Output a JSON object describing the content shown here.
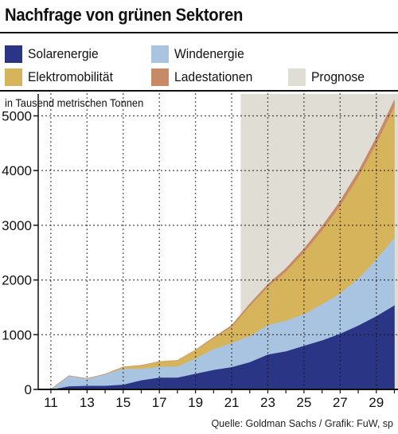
{
  "title": "Nachfrage von grünen Sektoren",
  "legend": [
    {
      "label": "Solarenergie",
      "color": "#2b3585"
    },
    {
      "label": "Windenergie",
      "color": "#a8c4e0"
    },
    {
      "label": "Elektromobilität",
      "color": "#d6b45c"
    },
    {
      "label": "Ladestationen",
      "color": "#c88a66"
    },
    {
      "label": "Prognose",
      "color": "#e0ddd5"
    }
  ],
  "unit_label": "in Tausend metrischen Tonnen",
  "source": "Quelle: Goldman Sachs / Grafik: FuW, sp",
  "chart_data": {
    "type": "area",
    "stacked": true,
    "title": "Nachfrage von grünen Sektoren",
    "ylabel": "in Tausend metrischen Tonnen",
    "x": [
      2011,
      2012,
      2013,
      2014,
      2015,
      2016,
      2017,
      2018,
      2019,
      2020,
      2021,
      2022,
      2023,
      2024,
      2025,
      2026,
      2027,
      2028,
      2029,
      2030
    ],
    "x_tick_values": [
      2011,
      2013,
      2015,
      2017,
      2019,
      2021,
      2023,
      2025,
      2027,
      2029
    ],
    "x_tick_labels": [
      "11",
      "13",
      "15",
      "17",
      "19",
      "21",
      "23",
      "25",
      "27",
      "29"
    ],
    "y_ticks": [
      0,
      1000,
      2000,
      3000,
      4000,
      5000
    ],
    "ylim": [
      0,
      5400
    ],
    "xlim": [
      2010.3,
      2030.2
    ],
    "forecast_start": 2021.5,
    "grid": "dotted",
    "series": [
      {
        "name": "Solarenergie",
        "color": "#2b3585",
        "values": [
          0,
          60,
          70,
          70,
          90,
          170,
          220,
          220,
          290,
          360,
          410,
          500,
          640,
          700,
          800,
          900,
          1020,
          1170,
          1340,
          1540
        ]
      },
      {
        "name": "Windenergie",
        "color": "#a8c4e0",
        "values": [
          0,
          190,
          130,
          210,
          290,
          210,
          200,
          200,
          280,
          380,
          440,
          480,
          540,
          560,
          580,
          660,
          740,
          860,
          1040,
          1240
        ]
      },
      {
        "name": "Elektromobilität",
        "color": "#d6b45c",
        "values": [
          0,
          0,
          0,
          0,
          30,
          60,
          90,
          110,
          150,
          200,
          300,
          550,
          700,
          900,
          1130,
          1350,
          1600,
          1860,
          2120,
          2400
        ]
      },
      {
        "name": "Ladestationen",
        "color": "#c88a66",
        "values": [
          0,
          0,
          0,
          0,
          0,
          0,
          0,
          0,
          0,
          10,
          20,
          30,
          40,
          50,
          60,
          70,
          80,
          90,
          100,
          110
        ]
      }
    ]
  }
}
